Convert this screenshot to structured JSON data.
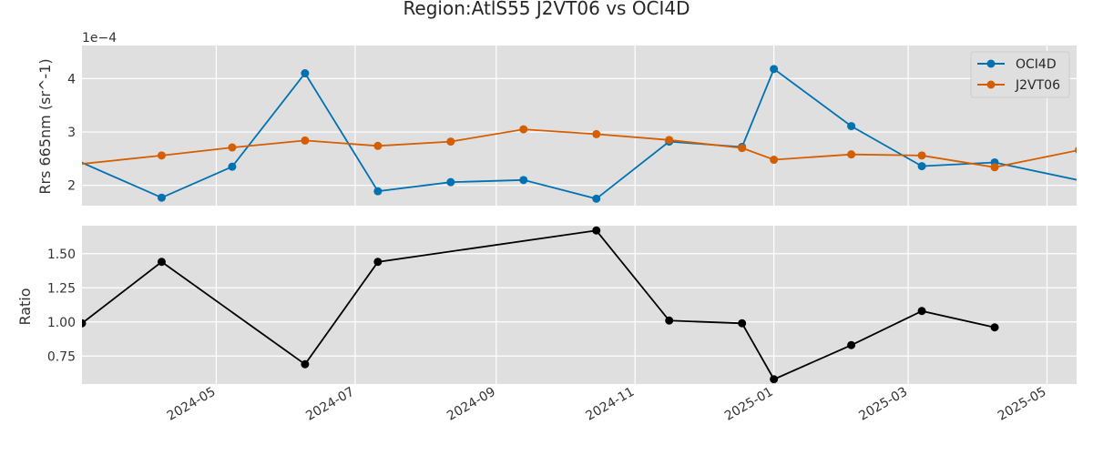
{
  "title": "Region:AtlS55 J2VT06 vs OCI4D",
  "colors": {
    "oci4d": "#0072b2",
    "j2vt06": "#d55e00",
    "ratio": "#000000",
    "panel_bg": "#dfdfdf",
    "grid": "#ffffff"
  },
  "chart_data": [
    {
      "type": "line",
      "ylabel": "Rrs 665nm (sr^-1)",
      "y_offset_label": "1e−4",
      "y_scale": 0.0001,
      "ylim": [
        1.62,
        4.62
      ],
      "yticks": [
        2,
        3,
        4
      ],
      "ytick_labels": [
        "2",
        "3",
        "4"
      ],
      "xlim": [
        "2024-03-03",
        "2025-05-14"
      ],
      "grid": true,
      "legend_position": "upper right",
      "series": [
        {
          "name": "OCI4D",
          "color": "#0072b2",
          "points": [
            [
              "2024-02-28",
              2.5
            ],
            [
              "2024-04-07",
              1.77
            ],
            [
              "2024-05-08",
              2.35
            ],
            [
              "2024-06-09",
              4.1
            ],
            [
              "2024-07-11",
              1.89
            ],
            [
              "2024-08-12",
              2.06
            ],
            [
              "2024-09-13",
              2.1
            ],
            [
              "2024-10-15",
              1.75
            ],
            [
              "2024-11-16",
              2.82
            ],
            [
              "2024-12-18",
              2.72
            ],
            [
              "2025-01-01",
              4.18
            ],
            [
              "2025-02-04",
              3.11
            ],
            [
              "2025-03-07",
              2.36
            ],
            [
              "2025-04-08",
              2.43
            ],
            [
              "2025-05-31",
              1.95
            ]
          ]
        },
        {
          "name": "J2VT06",
          "color": "#d55e00",
          "points": [
            [
              "2024-02-27",
              2.38
            ],
            [
              "2024-04-07",
              2.56
            ],
            [
              "2024-05-08",
              2.71
            ],
            [
              "2024-06-09",
              2.84
            ],
            [
              "2024-07-11",
              2.74
            ],
            [
              "2024-08-12",
              2.82
            ],
            [
              "2024-09-13",
              3.05
            ],
            [
              "2024-10-15",
              2.96
            ],
            [
              "2024-11-16",
              2.85
            ],
            [
              "2024-12-18",
              2.7
            ],
            [
              "2025-01-01",
              2.48
            ],
            [
              "2025-02-04",
              2.58
            ],
            [
              "2025-03-07",
              2.56
            ],
            [
              "2025-04-08",
              2.34
            ],
            [
              "2025-05-15",
              2.66
            ]
          ]
        }
      ]
    },
    {
      "type": "line",
      "ylabel": "Ratio",
      "ylim": [
        0.545,
        1.705
      ],
      "yticks": [
        0.75,
        1.0,
        1.25,
        1.5
      ],
      "ytick_labels": [
        "0.75",
        "1.00",
        "1.25",
        "1.50"
      ],
      "xlim": [
        "2024-03-03",
        "2025-05-14"
      ],
      "grid": true,
      "xtick_labels": [
        "2024-05",
        "2024-07",
        "2024-09",
        "2024-11",
        "2025-01",
        "2025-03",
        "2025-05"
      ],
      "series": [
        {
          "color": "#000000",
          "points": [
            [
              "2024-03-03",
              0.99
            ],
            [
              "2024-04-07",
              1.44
            ],
            [
              "2024-06-09",
              0.69
            ],
            [
              "2024-07-11",
              1.44
            ],
            [
              "2024-10-15",
              1.67
            ],
            [
              "2024-11-16",
              1.01
            ],
            [
              "2024-12-18",
              0.99
            ],
            [
              "2025-01-01",
              0.58
            ],
            [
              "2025-02-04",
              0.83
            ],
            [
              "2025-03-07",
              1.08
            ],
            [
              "2025-04-08",
              0.96
            ]
          ]
        }
      ]
    }
  ]
}
